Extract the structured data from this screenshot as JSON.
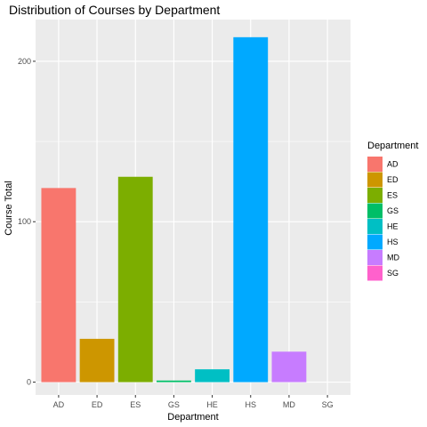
{
  "chart_data": {
    "type": "bar",
    "title": "Distribution of Courses by Department",
    "xlabel": "Department",
    "ylabel": "Course Total",
    "categories": [
      "AD",
      "ED",
      "ES",
      "GS",
      "HE",
      "HS",
      "MD",
      "SG"
    ],
    "values": [
      121,
      27,
      128,
      1,
      8,
      215,
      19,
      0
    ],
    "colors": [
      "#F8766D",
      "#CD9600",
      "#7CAE00",
      "#00BE67",
      "#00BFC4",
      "#00A9FF",
      "#C77CFF",
      "#FF61CC"
    ],
    "yticks": [
      0,
      100,
      200
    ],
    "ylim": [
      -8,
      226
    ],
    "grid": true,
    "legend": {
      "title": "Department",
      "placement": "right",
      "entries": [
        "AD",
        "ED",
        "ES",
        "GS",
        "HE",
        "HS",
        "MD",
        "SG"
      ]
    },
    "panel_color": "#EBEBEB"
  }
}
